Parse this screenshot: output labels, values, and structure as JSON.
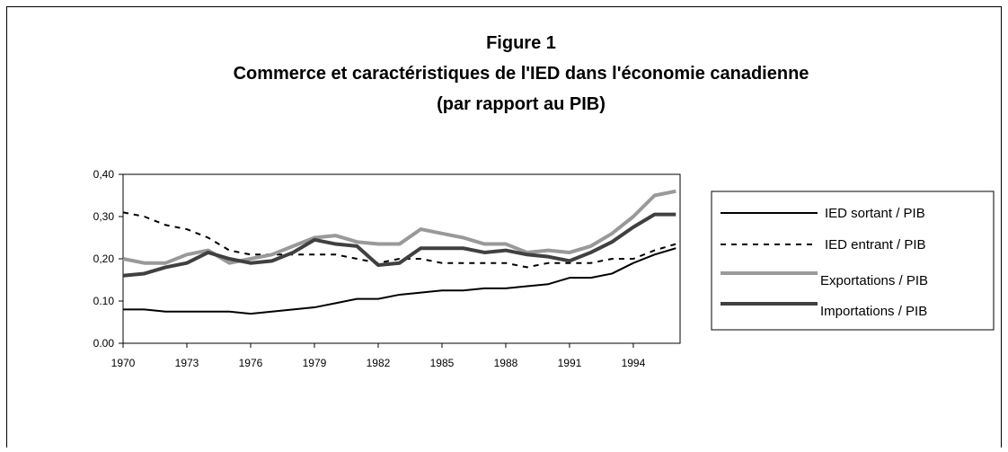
{
  "chart_data": {
    "type": "line",
    "title": "Figure 1",
    "subtitle": [
      "Commerce et caractéristiques de l'IED dans l'économie canadienne",
      "(par rapport au PIB)"
    ],
    "x": [
      1970,
      1971,
      1972,
      1973,
      1974,
      1975,
      1976,
      1977,
      1978,
      1979,
      1980,
      1981,
      1982,
      1983,
      1984,
      1985,
      1986,
      1987,
      1988,
      1989,
      1990,
      1991,
      1992,
      1993,
      1994,
      1995,
      1996
    ],
    "series": [
      {
        "name": "IED sortant / PIB",
        "color": "#000000",
        "dash": false,
        "width": 2,
        "values": [
          0.08,
          0.08,
          0.075,
          0.075,
          0.075,
          0.075,
          0.07,
          0.075,
          0.08,
          0.085,
          0.095,
          0.105,
          0.105,
          0.115,
          0.12,
          0.125,
          0.125,
          0.13,
          0.13,
          0.135,
          0.14,
          0.155,
          0.155,
          0.165,
          0.19,
          0.21,
          0.225
        ]
      },
      {
        "name": "IED entrant / PIB",
        "color": "#000000",
        "dash": true,
        "width": 2,
        "values": [
          0.31,
          0.3,
          0.28,
          0.27,
          0.25,
          0.22,
          0.21,
          0.21,
          0.21,
          0.21,
          0.21,
          0.2,
          0.19,
          0.2,
          0.2,
          0.19,
          0.19,
          0.19,
          0.19,
          0.18,
          0.19,
          0.19,
          0.19,
          0.2,
          0.2,
          0.22,
          0.235
        ]
      },
      {
        "name": "Exportations / PIB",
        "color": "#999999",
        "dash": false,
        "width": 4,
        "values": [
          0.2,
          0.19,
          0.19,
          0.21,
          0.22,
          0.19,
          0.2,
          0.21,
          0.23,
          0.25,
          0.255,
          0.24,
          0.235,
          0.235,
          0.27,
          0.26,
          0.25,
          0.235,
          0.235,
          0.215,
          0.22,
          0.215,
          0.23,
          0.26,
          0.3,
          0.35,
          0.36
        ]
      },
      {
        "name": "Importations / PIB",
        "color": "#404040",
        "dash": false,
        "width": 4,
        "values": [
          0.16,
          0.165,
          0.18,
          0.19,
          0.215,
          0.2,
          0.19,
          0.195,
          0.215,
          0.245,
          0.235,
          0.23,
          0.185,
          0.19,
          0.225,
          0.225,
          0.225,
          0.215,
          0.22,
          0.21,
          0.205,
          0.195,
          0.215,
          0.24,
          0.275,
          0.305,
          0.305
        ]
      }
    ],
    "xlim": [
      1970,
      1996.2
    ],
    "xticks": [
      1970,
      1973,
      1976,
      1979,
      1982,
      1985,
      1988,
      1991,
      1994
    ],
    "ylim": [
      0,
      0.4
    ],
    "yticks": [
      {
        "value": 0,
        "label": "0.00"
      },
      {
        "value": 0.1,
        "label": "0.10"
      },
      {
        "value": 0.2,
        "label": "0,20"
      },
      {
        "value": 0.3,
        "label": "0,30"
      },
      {
        "value": 0.4,
        "label": "0,40"
      }
    ],
    "grid": false,
    "legend": "right"
  }
}
